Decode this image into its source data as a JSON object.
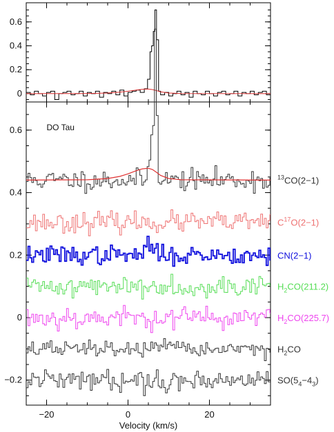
{
  "chart_data": [
    {
      "type": "line",
      "panel": "top",
      "xlim": [
        -25,
        35
      ],
      "ylim": [
        -0.07,
        0.76
      ],
      "yticks": [
        0,
        0.2,
        0.4,
        0.6
      ],
      "ytick_labels": [
        "0",
        "0.2",
        "0.4",
        "0.6"
      ],
      "series": [
        {
          "name": "spectrum",
          "color": "#000000",
          "style": "histogram",
          "offset": 0,
          "points": [
            [
              -25,
              0.01
            ],
            [
              -24,
              -0.01
            ],
            [
              -23,
              0.02
            ],
            [
              -22,
              0.0
            ],
            [
              -21,
              -0.02
            ],
            [
              -20,
              0.01
            ],
            [
              -19,
              0.02
            ],
            [
              -18,
              -0.05
            ],
            [
              -17,
              0.0
            ],
            [
              -16,
              0.01
            ],
            [
              -15,
              0.02
            ],
            [
              -14,
              -0.01
            ],
            [
              -13,
              0.0
            ],
            [
              -12,
              0.02
            ],
            [
              -11,
              -0.02
            ],
            [
              -10,
              0.01
            ],
            [
              -9,
              0.0
            ],
            [
              -8,
              0.02
            ],
            [
              -7,
              -0.03
            ],
            [
              -6,
              0.01
            ],
            [
              -5,
              0.0
            ],
            [
              -4,
              0.02
            ],
            [
              -3,
              -0.01
            ],
            [
              -2,
              0.03
            ],
            [
              -1,
              -0.02
            ],
            [
              0,
              0.01
            ],
            [
              1,
              0.02
            ],
            [
              2,
              0.03
            ],
            [
              3,
              0.01
            ],
            [
              4,
              0.04
            ],
            [
              4.8,
              0.12
            ],
            [
              5.4,
              0.35
            ],
            [
              5.8,
              0.4
            ],
            [
              6.2,
              0.52
            ],
            [
              6.6,
              0.7
            ],
            [
              7.0,
              0.45
            ],
            [
              7.5,
              0.02
            ],
            [
              8,
              -0.01
            ],
            [
              9,
              0.01
            ],
            [
              10,
              -0.02
            ],
            [
              11,
              0.0
            ],
            [
              12,
              0.02
            ],
            [
              13,
              -0.01
            ],
            [
              14,
              0.01
            ],
            [
              15,
              -0.03
            ],
            [
              16,
              0.02
            ],
            [
              17,
              0.0
            ],
            [
              18,
              -0.01
            ],
            [
              19,
              0.02
            ],
            [
              20,
              0.0
            ],
            [
              21,
              -0.02
            ],
            [
              22,
              0.01
            ],
            [
              23,
              0.02
            ],
            [
              24,
              -0.01
            ],
            [
              25,
              0.0
            ],
            [
              26,
              0.02
            ],
            [
              27,
              -0.02
            ],
            [
              28,
              0.01
            ],
            [
              29,
              0.0
            ],
            [
              30,
              0.02
            ],
            [
              31,
              -0.01
            ],
            [
              32,
              0.01
            ],
            [
              33,
              0.02
            ],
            [
              34,
              -0.01
            ],
            [
              35,
              0.0
            ]
          ]
        },
        {
          "name": "fit",
          "color": "#e03030",
          "style": "curve",
          "offset": 0,
          "points": [
            [
              -25,
              0.0
            ],
            [
              -10,
              0.001
            ],
            [
              -5,
              0.005
            ],
            [
              -2,
              0.012
            ],
            [
              0,
              0.02
            ],
            [
              2,
              0.03
            ],
            [
              3.5,
              0.036
            ],
            [
              5,
              0.038
            ],
            [
              6,
              0.034
            ],
            [
              7,
              0.025
            ],
            [
              8,
              0.015
            ],
            [
              10,
              0.005
            ],
            [
              13,
              0.001
            ],
            [
              35,
              0.0
            ]
          ]
        }
      ]
    },
    {
      "type": "line",
      "panel": "bottom",
      "xlabel": "Velocity (km/s)",
      "xlim": [
        -25,
        35
      ],
      "ylim": [
        -0.28,
        0.69
      ],
      "xticks": [
        -20,
        0,
        20
      ],
      "xtick_labels": [
        "−20",
        "0",
        "20"
      ],
      "yticks": [
        -0.2,
        0,
        0.2,
        0.4,
        0.6
      ],
      "ytick_labels": [
        "−0.2",
        "0",
        "0.2",
        "0.4",
        "0.6"
      ],
      "annotation": "DO Tau",
      "series": [
        {
          "name": "13CO(2-1)",
          "label_prefix": "",
          "label_sup": "13",
          "label_main": "CO(2−1)",
          "label_sub": "",
          "label_after": "",
          "color": "#333333",
          "offset": 0.44,
          "noise": 0.017,
          "seed": 11,
          "peak": [
            [
              4.6,
              0.03
            ],
            [
              5.2,
              0.08
            ],
            [
              5.7,
              0.13
            ],
            [
              6.2,
              0.2
            ],
            [
              6.6,
              0.3
            ],
            [
              7.0,
              0.22
            ],
            [
              7.4,
              0.02
            ]
          ]
        },
        {
          "name": "C17O(2-1)",
          "label_prefix": "C",
          "label_sup": "17",
          "label_main": "O(2−1)",
          "label_sub": "",
          "label_after": "",
          "color": "#ee7070",
          "offset": 0.305,
          "noise": 0.016,
          "seed": 23,
          "peak": []
        },
        {
          "name": "CN(2-1)",
          "label_prefix": "",
          "label_sup": "",
          "label_main": "CN(2−1)",
          "label_sub": "",
          "label_after": "",
          "color": "#1010dd",
          "offset": 0.2,
          "noise": 0.015,
          "seed": 37,
          "peak": [
            [
              4.5,
              0.02
            ],
            [
              5.0,
              0.03
            ],
            [
              5.5,
              0.02
            ],
            [
              6.0,
              0.035
            ],
            [
              6.5,
              0.025
            ]
          ]
        },
        {
          "name": "H2CO(211.2)",
          "label_prefix": "H",
          "label_sup": "",
          "label_main": "CO(211.2)",
          "label_sub": "2",
          "label_after": "",
          "color": "#55dd55",
          "offset": 0.1,
          "noise": 0.016,
          "seed": 41,
          "peak": []
        },
        {
          "name": "H2CO(225.7)",
          "label_prefix": "H",
          "label_sup": "",
          "label_main": "CO(225.7)",
          "label_sub": "2",
          "label_after": "",
          "color": "#ee44ee",
          "offset": 0.0,
          "noise": 0.018,
          "seed": 53,
          "peak": []
        },
        {
          "name": "H2CO",
          "label_prefix": "H",
          "label_sup": "",
          "label_main": "CO",
          "label_sub": "2",
          "label_after": "",
          "color": "#333333",
          "offset": -0.1,
          "noise": 0.013,
          "seed": 67,
          "peak": []
        },
        {
          "name": "SO(54-43)",
          "label_prefix": "SO(5",
          "label_sup": "",
          "label_main": "−4",
          "label_sub": "4",
          "label_after": ")",
          "label_sub2": "3",
          "color": "#333333",
          "offset": -0.2,
          "noise": 0.016,
          "seed": 79,
          "peak": []
        }
      ],
      "fit": {
        "name": "13CO fit",
        "color": "#e03030",
        "offset": 0.44,
        "points": [
          [
            -25,
            0.0
          ],
          [
            -10,
            0.001
          ],
          [
            -5,
            0.005
          ],
          [
            -2,
            0.012
          ],
          [
            0,
            0.02
          ],
          [
            2,
            0.03
          ],
          [
            3.5,
            0.036
          ],
          [
            5,
            0.038
          ],
          [
            6,
            0.034
          ],
          [
            7,
            0.025
          ],
          [
            8,
            0.015
          ],
          [
            10,
            0.005
          ],
          [
            13,
            0.001
          ],
          [
            35,
            0.0
          ]
        ]
      }
    }
  ]
}
